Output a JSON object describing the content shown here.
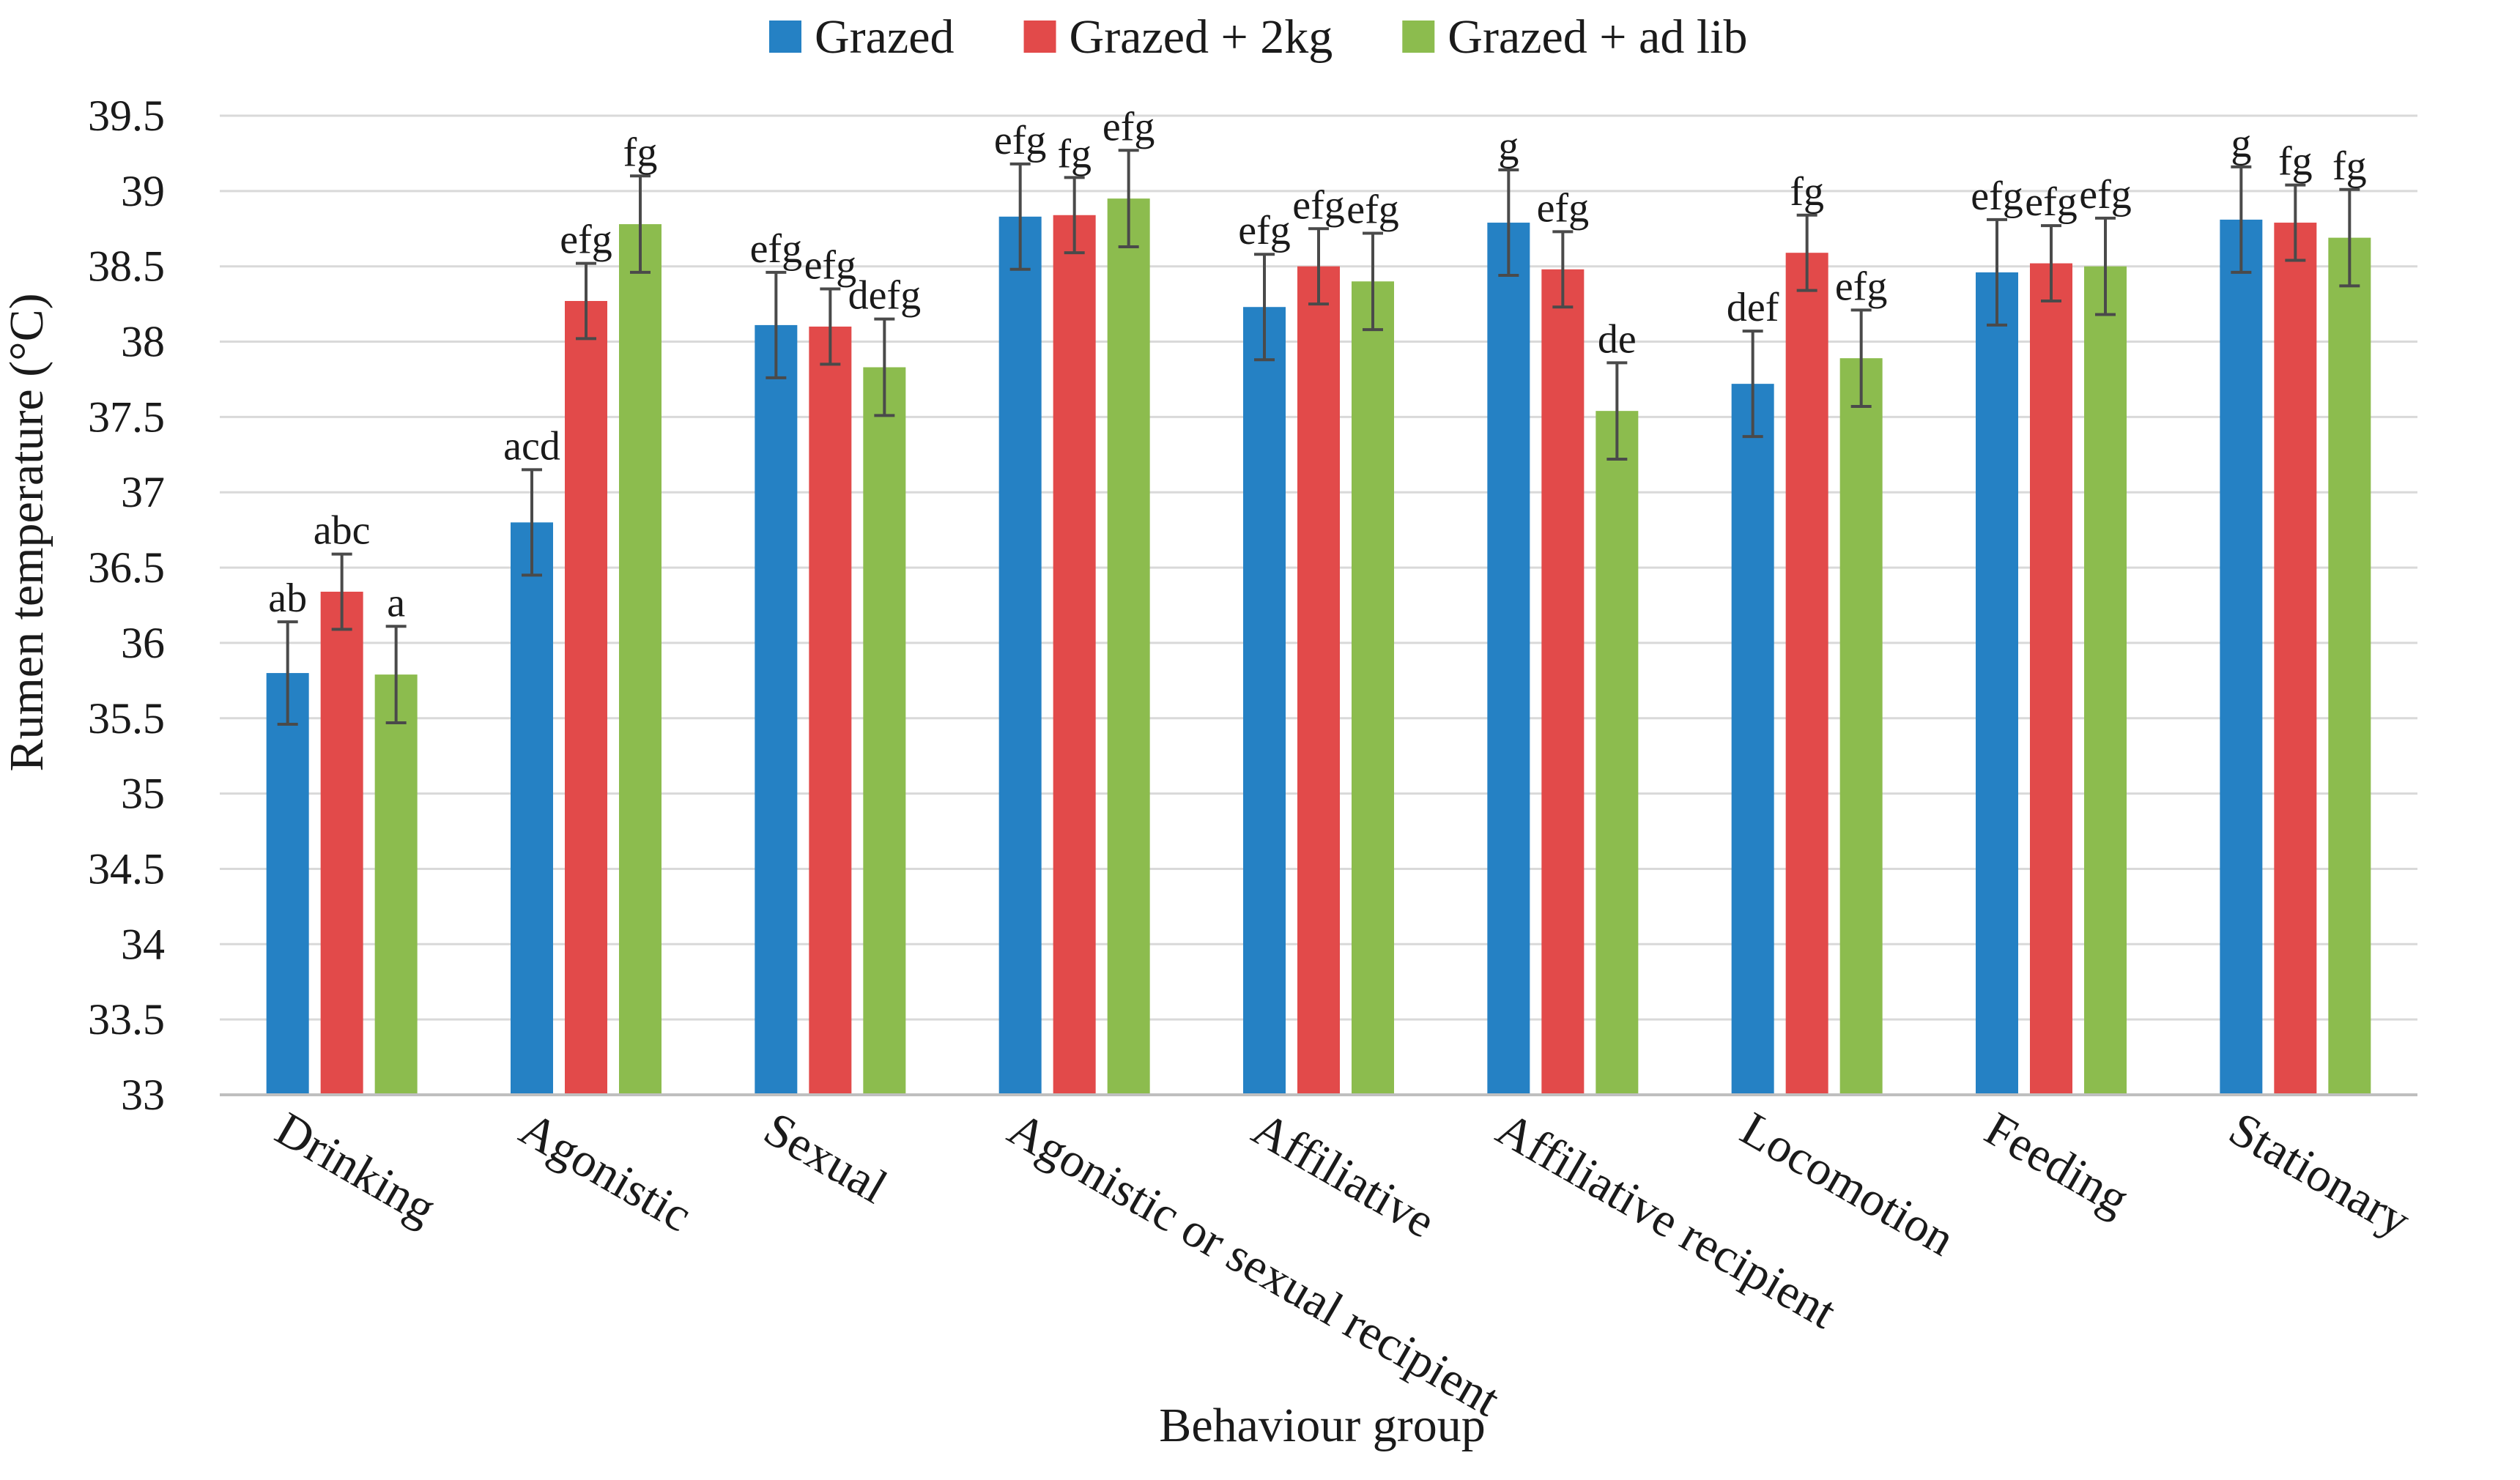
{
  "chart_data": {
    "type": "bar",
    "title": "",
    "xlabel": "Behaviour group",
    "ylabel": "Rumen temperature (°C)",
    "ylim": [
      33,
      39.5
    ],
    "yticks": [
      "33",
      "33.5",
      "34",
      "34.5",
      "35",
      "35.5",
      "36",
      "36.5",
      "37",
      "37.5",
      "38",
      "38.5",
      "39",
      "39.5"
    ],
    "grid": true,
    "legend_position": "top",
    "categories": [
      "Drinking",
      "Agonistic",
      "Sexual",
      "Agonistic or sexual recipient",
      "Affiliative",
      "Affiliative recipient",
      "Locomotion",
      "Feeding",
      "Stationary"
    ],
    "series": [
      {
        "name": "Grazed",
        "color": "#2581c4",
        "values": [
          35.8,
          36.8,
          38.11,
          38.83,
          38.23,
          38.79,
          37.72,
          38.46,
          38.81
        ],
        "errors": [
          0.34,
          0.35,
          0.35,
          0.35,
          0.35,
          0.35,
          0.35,
          0.35,
          0.35
        ],
        "labels": [
          "ab",
          "acd",
          "efg",
          "efg",
          "efg",
          "g",
          "def",
          "efg",
          "g"
        ]
      },
      {
        "name": "Grazed + 2kg",
        "color": "#e24a4a",
        "values": [
          36.34,
          38.27,
          38.1,
          38.84,
          38.5,
          38.48,
          38.59,
          38.52,
          38.79
        ],
        "errors": [
          0.25,
          0.25,
          0.25,
          0.25,
          0.25,
          0.25,
          0.25,
          0.25,
          0.25
        ],
        "labels": [
          "abc",
          "efg",
          "efg",
          "fg",
          "efg",
          "efg",
          "fg",
          "efg",
          "fg"
        ]
      },
      {
        "name": "Grazed + ad lib",
        "color": "#8cbc4e",
        "values": [
          35.79,
          38.78,
          37.83,
          38.95,
          38.4,
          37.54,
          37.89,
          38.5,
          38.69
        ],
        "errors": [
          0.32,
          0.32,
          0.32,
          0.32,
          0.32,
          0.32,
          0.32,
          0.32,
          0.32
        ],
        "labels": [
          "a",
          "fg",
          "defg",
          "efg",
          "efg",
          "de",
          "efg",
          "efg",
          "fg"
        ]
      }
    ]
  }
}
